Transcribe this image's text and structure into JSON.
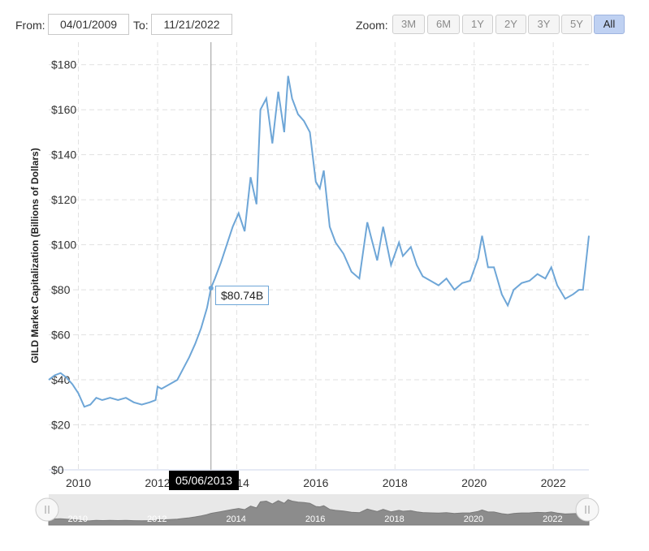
{
  "range_selector": {
    "from_label": "From:",
    "from_value": "04/01/2009",
    "to_label": "To:",
    "to_value": "11/21/2022",
    "zoom_label": "Zoom:",
    "zoom_buttons": [
      "3M",
      "6M",
      "1Y",
      "2Y",
      "3Y",
      "5Y",
      "All"
    ],
    "active_zoom": "All"
  },
  "tooltip": {
    "value": "$80.74B",
    "date": "05/06/2013"
  },
  "navigator": {
    "tick_labels": [
      "2010",
      "2012",
      "2014",
      "2016",
      "2018",
      "2020",
      "2022"
    ]
  },
  "colors": {
    "line": "#6ea6d7",
    "tooltip_border": "#6ea6d7",
    "date_flag_bg": "#000000"
  },
  "chart_data": {
    "type": "line",
    "title": "",
    "xlabel": "",
    "ylabel": "GILD Market Capitalization (Billions of Dollars)",
    "ylim": [
      0,
      190
    ],
    "yticks": [
      0,
      20,
      40,
      60,
      80,
      100,
      120,
      140,
      160,
      180
    ],
    "ytick_labels": [
      "$0",
      "$20",
      "$40",
      "$60",
      "$80",
      "$100",
      "$120",
      "$140",
      "$160",
      "$180"
    ],
    "xlim": [
      2009.25,
      2022.9
    ],
    "xticks": [
      2010,
      2012,
      2014,
      2016,
      2018,
      2020,
      2022
    ],
    "xtick_labels": [
      "2010",
      "2012",
      "2014",
      "2016",
      "2018",
      "2020",
      "2022"
    ],
    "grid": true,
    "series": [
      {
        "name": "",
        "x": [
          2009.25,
          2009.4,
          2009.55,
          2009.7,
          2009.85,
          2010.0,
          2010.15,
          2010.3,
          2010.45,
          2010.6,
          2010.8,
          2011.0,
          2011.2,
          2011.4,
          2011.6,
          2011.8,
          2011.95,
          2012.0,
          2012.1,
          2012.3,
          2012.5,
          2012.65,
          2012.8,
          2012.95,
          2013.1,
          2013.25,
          2013.35,
          2013.45,
          2013.6,
          2013.75,
          2013.9,
          2014.05,
          2014.2,
          2014.35,
          2014.5,
          2014.6,
          2014.75,
          2014.9,
          2015.05,
          2015.2,
          2015.3,
          2015.4,
          2015.55,
          2015.7,
          2015.85,
          2016.0,
          2016.1,
          2016.2,
          2016.35,
          2016.5,
          2016.7,
          2016.9,
          2017.1,
          2017.3,
          2017.4,
          2017.55,
          2017.7,
          2017.9,
          2018.1,
          2018.2,
          2018.4,
          2018.55,
          2018.7,
          2018.9,
          2019.1,
          2019.3,
          2019.5,
          2019.7,
          2019.9,
          2020.1,
          2020.2,
          2020.35,
          2020.5,
          2020.7,
          2020.85,
          2021.0,
          2021.2,
          2021.4,
          2021.6,
          2021.8,
          2021.95,
          2022.1,
          2022.3,
          2022.5,
          2022.65,
          2022.75,
          2022.85,
          2022.9
        ],
        "values": [
          40,
          42,
          43,
          41,
          38,
          34,
          28,
          29,
          32,
          31,
          32,
          31,
          32,
          30,
          29,
          30,
          31,
          37,
          36,
          38,
          40,
          45,
          50,
          56,
          63,
          72,
          80.74,
          85,
          92,
          100,
          108,
          114,
          106,
          130,
          118,
          160,
          165,
          145,
          168,
          150,
          175,
          165,
          158,
          155,
          150,
          128,
          125,
          133,
          108,
          101,
          96,
          88,
          85,
          110,
          103,
          93,
          108,
          91,
          101,
          95,
          99,
          91,
          86,
          84,
          82,
          85,
          80,
          83,
          84,
          94,
          104,
          90,
          90,
          78,
          73,
          80,
          83,
          84,
          87,
          85,
          90,
          82,
          76,
          78,
          80,
          80,
          96,
          104
        ]
      }
    ]
  }
}
